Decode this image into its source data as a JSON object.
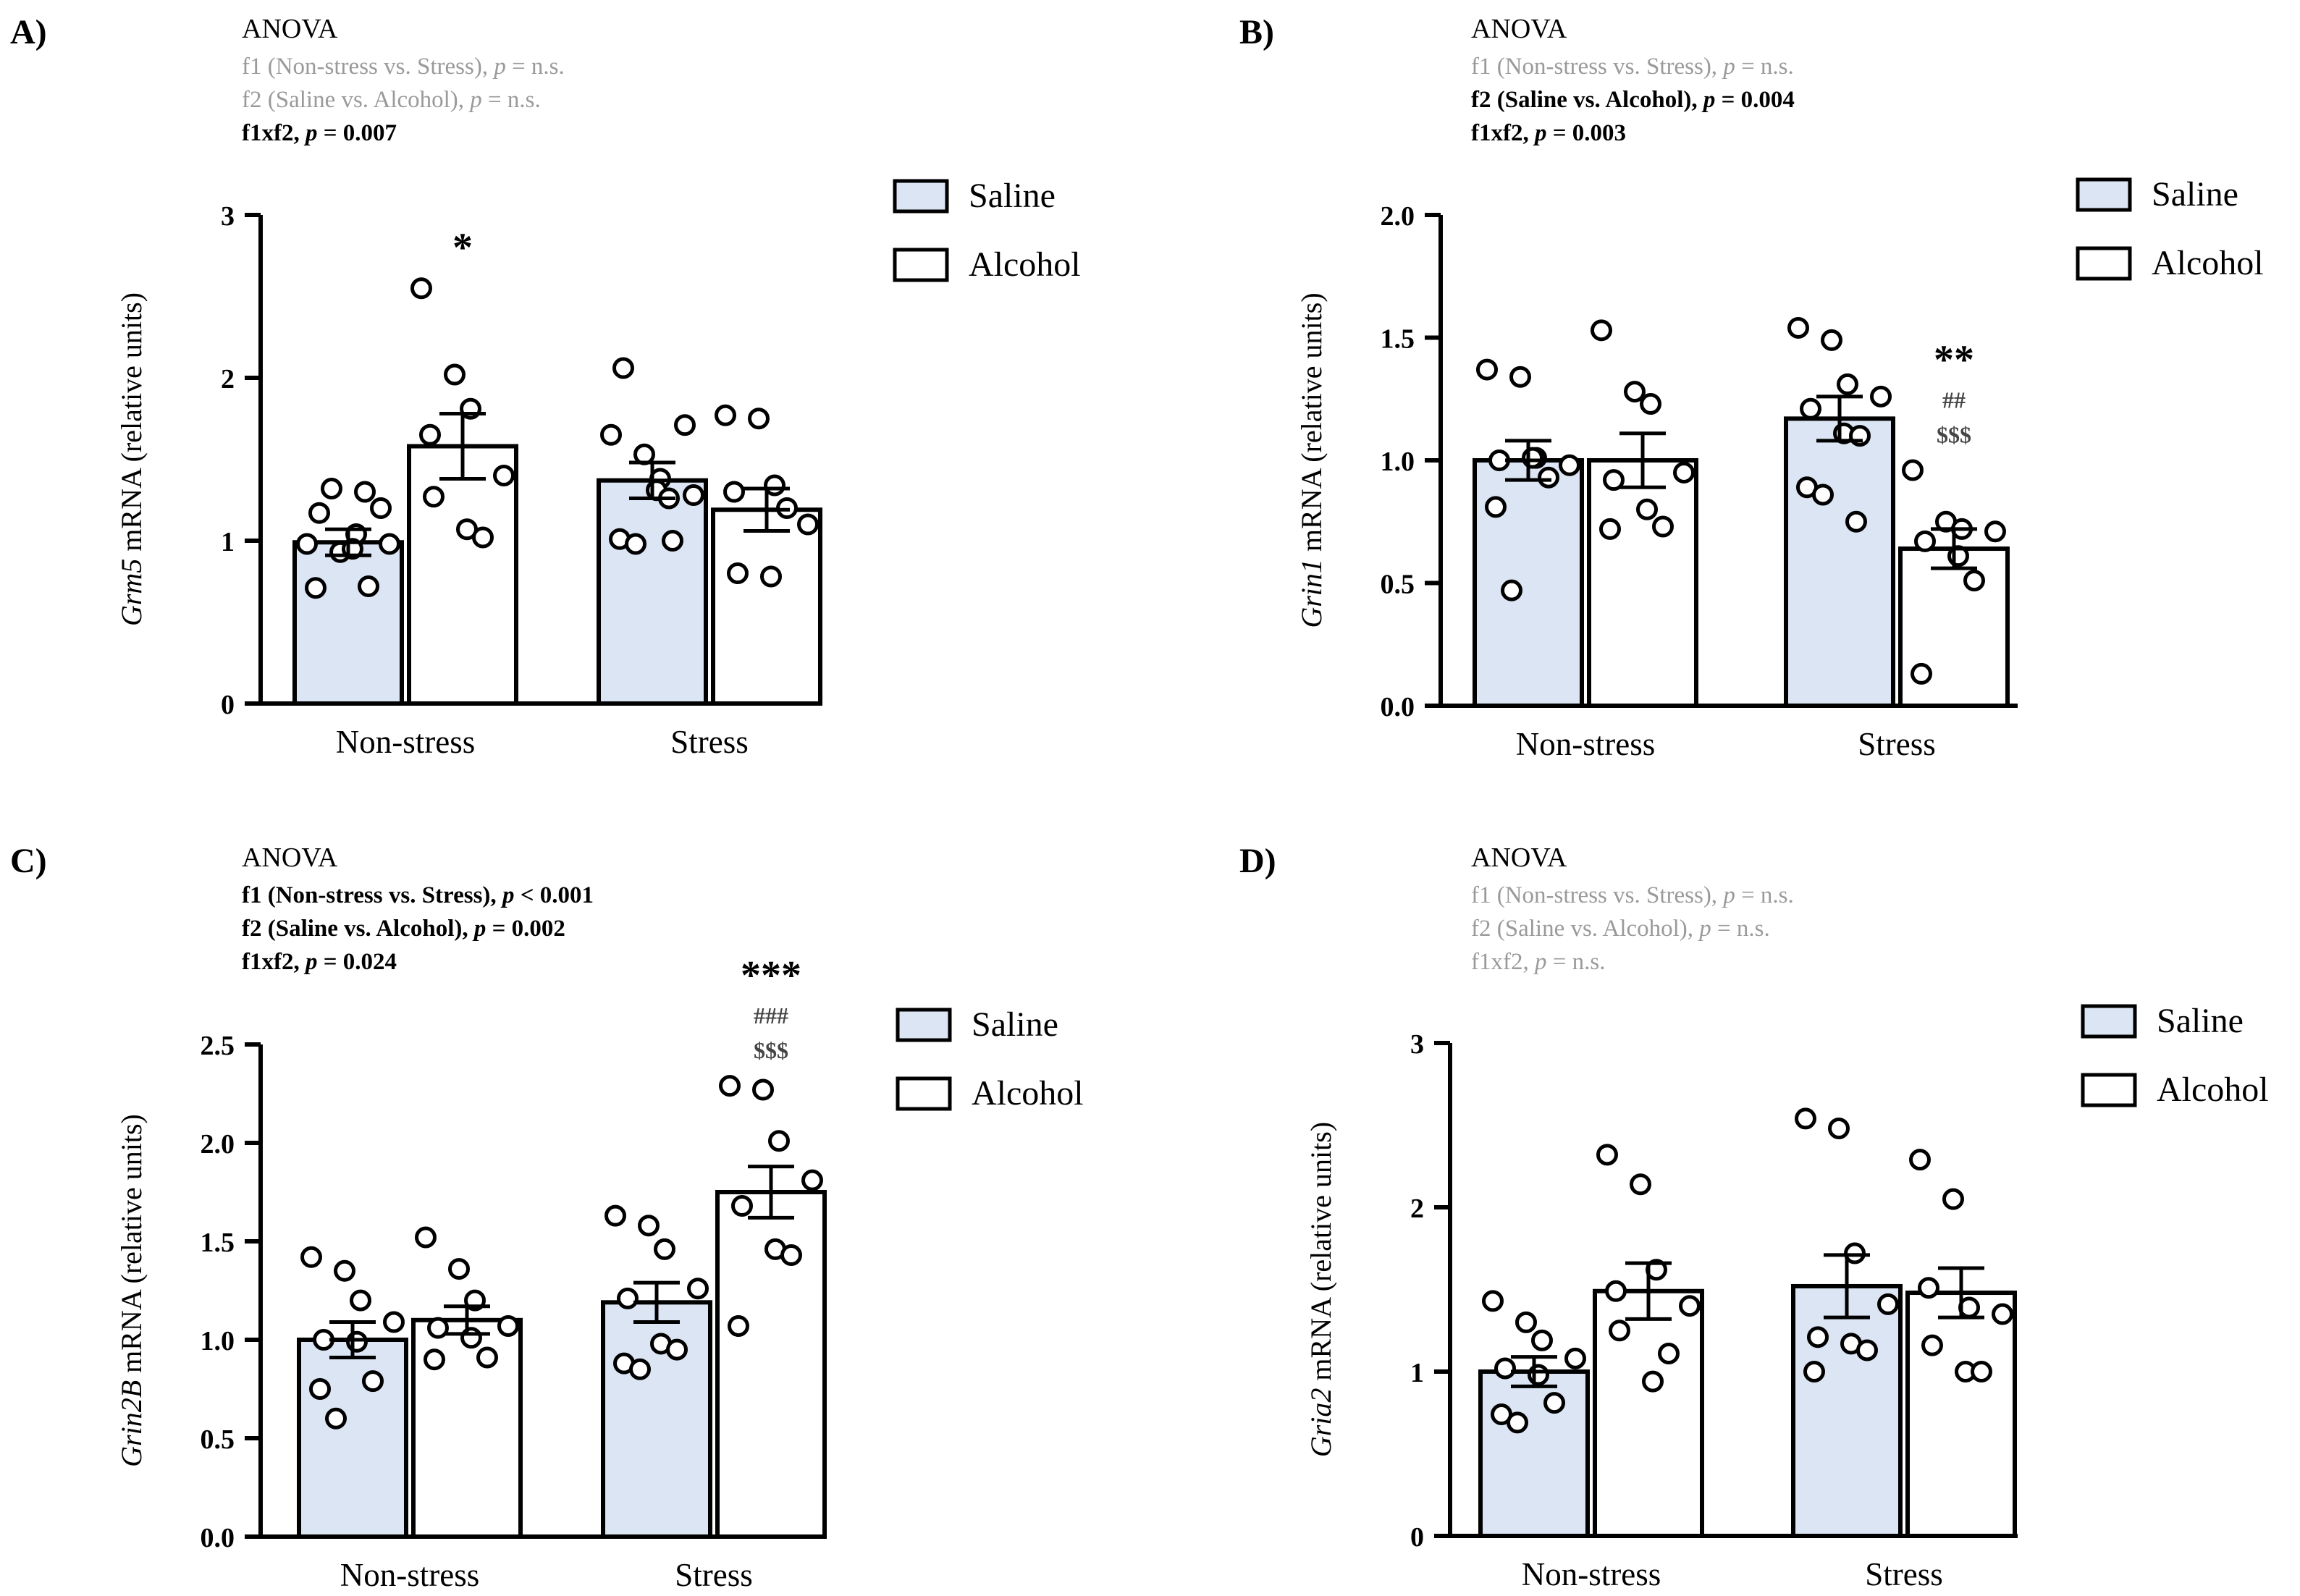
{
  "colors": {
    "saline_fill": "#dbe5f4",
    "alcohol_fill": "#ffffff",
    "stroke": "#000000",
    "muted_text": "#9a9a9a"
  },
  "chart_data": [
    {
      "panel": "A)",
      "type": "bar",
      "anova": {
        "heading": "ANOVA",
        "lines": [
          {
            "label": "f1 (Non-stress vs. Stress), ",
            "p": "p",
            "value": " = n.s.",
            "significant": false
          },
          {
            "label": "f2 (Saline vs. Alcohol), ",
            "p": "p",
            "value": " = n.s.",
            "significant": false
          },
          {
            "label": "f1xf2, ",
            "p": "p",
            "value": " = 0.007",
            "significant": true
          }
        ]
      },
      "ylabel": {
        "gene": "Grm5",
        "rest": " mRNA (relative units)"
      },
      "ylim": [
        0,
        3
      ],
      "yticks": [
        "0",
        "1",
        "2",
        "3"
      ],
      "categories": [
        "Non-stress",
        "Stress"
      ],
      "legend": [
        "Saline",
        "Alcohol"
      ],
      "series": [
        {
          "name": "Saline",
          "values": [
            0.99,
            1.37
          ],
          "sem": [
            0.08,
            0.11
          ],
          "points": [
            [
              0.98,
              0.93,
              1.04,
              0.98,
              1.17,
              0.95,
              0.72,
              0.71,
              1.32,
              1.3,
              1.2
            ],
            [
              1.65,
              1.53,
              1.38,
              1.28,
              2.06,
              1.31,
              1.0,
              1.01,
              0.98,
              1.26,
              1.71
            ]
          ]
        },
        {
          "name": "Alcohol",
          "values": [
            1.58,
            1.19
          ],
          "sem": [
            0.2,
            0.13
          ],
          "points": [
            [
              2.55,
              2.02,
              1.81,
              1.4,
              1.27,
              1.07,
              1.02,
              1.65
            ],
            [
              1.77,
              1.75,
              1.34,
              1.1,
              0.8,
              0.78,
              1.2,
              1.3
            ]
          ]
        }
      ],
      "significance": [
        {
          "category": "Stress",
          "series": "Alcohol",
          "marks": []
        },
        {
          "category": "Non-stress",
          "series": "Alcohol",
          "marks": [
            "*"
          ]
        }
      ]
    },
    {
      "panel": "B)",
      "type": "bar",
      "anova": {
        "heading": "ANOVA",
        "lines": [
          {
            "label": "f1 (Non-stress vs. Stress), ",
            "p": "p",
            "value": " = n.s.",
            "significant": false
          },
          {
            "label": "f2 (Saline vs. Alcohol), ",
            "p": "p",
            "value": " = 0.004",
            "significant": true
          },
          {
            "label": "f1xf2, ",
            "p": "p",
            "value": " = 0.003",
            "significant": true
          }
        ]
      },
      "ylabel": {
        "gene": "Grin1",
        "rest": " mRNA (relative units)"
      },
      "ylim": [
        0,
        2
      ],
      "yticks": [
        "0.0",
        "0.5",
        "1.0",
        "1.5",
        "2.0"
      ],
      "categories": [
        "Non-stress",
        "Stress"
      ],
      "legend": [
        "Saline",
        "Alcohol"
      ],
      "series": [
        {
          "name": "Saline",
          "values": [
            1.0,
            1.17
          ],
          "sem": [
            0.08,
            0.09
          ],
          "points": [
            [
              1.37,
              1.34,
              1.01,
              0.98,
              1.0,
              1.01,
              0.93,
              0.81,
              0.47
            ],
            [
              1.54,
              1.49,
              1.31,
              1.26,
              1.21,
              1.11,
              1.1,
              0.89,
              0.86,
              0.75
            ]
          ]
        },
        {
          "name": "Alcohol",
          "values": [
            1.0,
            0.64
          ],
          "sem": [
            0.11,
            0.08
          ],
          "points": [
            [
              1.53,
              1.28,
              1.23,
              0.95,
              0.92,
              0.8,
              0.73,
              0.72
            ],
            [
              0.96,
              0.75,
              0.72,
              0.71,
              0.67,
              0.61,
              0.51,
              0.13
            ]
          ]
        }
      ],
      "significance": [
        {
          "category": "Stress",
          "series": "Alcohol",
          "marks": [
            "**",
            "##",
            "$$$"
          ]
        }
      ]
    },
    {
      "panel": "C)",
      "type": "bar",
      "anova": {
        "heading": "ANOVA",
        "lines": [
          {
            "label": "f1 (Non-stress vs. Stress), ",
            "p": "p",
            "value": " < 0.001",
            "significant": true
          },
          {
            "label": "f2 (Saline vs. Alcohol), ",
            "p": "p",
            "value": " = 0.002",
            "significant": true
          },
          {
            "label": "f1xf2, ",
            "p": "p",
            "value": " = 0.024",
            "significant": true
          }
        ]
      },
      "ylabel": {
        "gene": "Grin2B",
        "rest": " mRNA (relative units)"
      },
      "ylim": [
        0,
        2.5
      ],
      "yticks": [
        "0.0",
        "0.5",
        "1.0",
        "1.5",
        "2.0",
        "2.5"
      ],
      "categories": [
        "Non-stress",
        "Stress"
      ],
      "legend": [
        "Saline",
        "Alcohol"
      ],
      "series": [
        {
          "name": "Saline",
          "values": [
            1.0,
            1.19
          ],
          "sem": [
            0.09,
            0.1
          ],
          "points": [
            [
              1.42,
              1.35,
              1.2,
              1.09,
              1.0,
              0.99,
              0.79,
              0.75,
              0.6
            ],
            [
              1.63,
              1.58,
              1.46,
              1.26,
              1.21,
              0.98,
              0.95,
              0.88,
              0.85
            ]
          ]
        },
        {
          "name": "Alcohol",
          "values": [
            1.1,
            1.75
          ],
          "sem": [
            0.07,
            0.13
          ],
          "points": [
            [
              1.52,
              1.36,
              1.2,
              1.07,
              1.06,
              1.01,
              0.91,
              0.9
            ],
            [
              2.29,
              2.27,
              2.01,
              1.81,
              1.68,
              1.46,
              1.43,
              1.07
            ]
          ]
        }
      ],
      "significance": [
        {
          "category": "Stress",
          "series": "Alcohol",
          "marks": [
            "***",
            "###",
            "$$$"
          ]
        }
      ]
    },
    {
      "panel": "D)",
      "type": "bar",
      "anova": {
        "heading": "ANOVA",
        "lines": [
          {
            "label": "f1 (Non-stress vs. Stress), ",
            "p": "p",
            "value": " = n.s.",
            "significant": false
          },
          {
            "label": "f2 (Saline vs. Alcohol), ",
            "p": "p",
            "value": " = n.s.",
            "significant": false
          },
          {
            "label": "f1xf2, ",
            "p": "p",
            "value": " = n.s.",
            "significant": false
          }
        ]
      },
      "ylabel": {
        "gene": "Gria2",
        "rest": " mRNA (relative units)"
      },
      "ylim": [
        0,
        3
      ],
      "yticks": [
        "0",
        "1",
        "2",
        "3"
      ],
      "categories": [
        "Non-stress",
        "Stress"
      ],
      "legend": [
        "Saline",
        "Alcohol"
      ],
      "series": [
        {
          "name": "Saline",
          "values": [
            1.0,
            1.52
          ],
          "sem": [
            0.09,
            0.19
          ],
          "points": [
            [
              1.43,
              1.3,
              1.19,
              1.08,
              1.02,
              0.98,
              0.81,
              0.74,
              0.69
            ],
            [
              2.54,
              2.48,
              1.72,
              1.41,
              1.21,
              1.17,
              1.13,
              1.0
            ]
          ]
        },
        {
          "name": "Alcohol",
          "values": [
            1.49,
            1.48
          ],
          "sem": [
            0.17,
            0.15
          ],
          "points": [
            [
              2.32,
              2.14,
              1.62,
              1.4,
              1.25,
              0.94,
              1.11,
              1.49
            ],
            [
              2.29,
              2.05,
              1.39,
              1.35,
              1.16,
              1.0,
              1.0,
              1.51
            ]
          ]
        }
      ],
      "significance": []
    }
  ]
}
